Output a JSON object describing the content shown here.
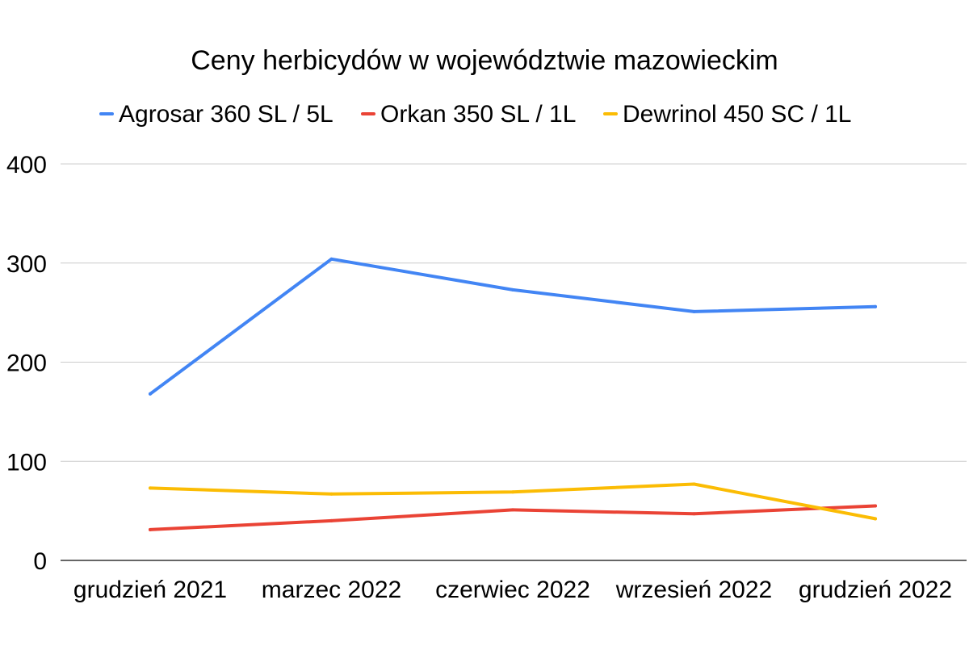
{
  "chart_data": {
    "type": "line",
    "title": "Ceny herbicydów w województwie mazowieckim",
    "xlabel": "",
    "ylabel": "",
    "categories": [
      "grudzień 2021",
      "marzec 2022",
      "czerwiec 2022",
      "wrzesień 2022",
      "grudzień 2022"
    ],
    "ylim": [
      0,
      400
    ],
    "yticks": [
      "0",
      "100",
      "200",
      "300",
      "400"
    ],
    "grid": true,
    "legend_position": "top",
    "series": [
      {
        "name": "Agrosar 360 SL / 5L",
        "color": "#4285f4",
        "values": [
          168,
          304,
          273,
          251,
          256
        ]
      },
      {
        "name": "Orkan 350 SL / 1L",
        "color": "#ea4335",
        "values": [
          31,
          40,
          51,
          47,
          55
        ]
      },
      {
        "name": "Dewrinol 450 SC / 1L",
        "color": "#fbbc04",
        "values": [
          73,
          67,
          69,
          77,
          42
        ]
      }
    ]
  }
}
